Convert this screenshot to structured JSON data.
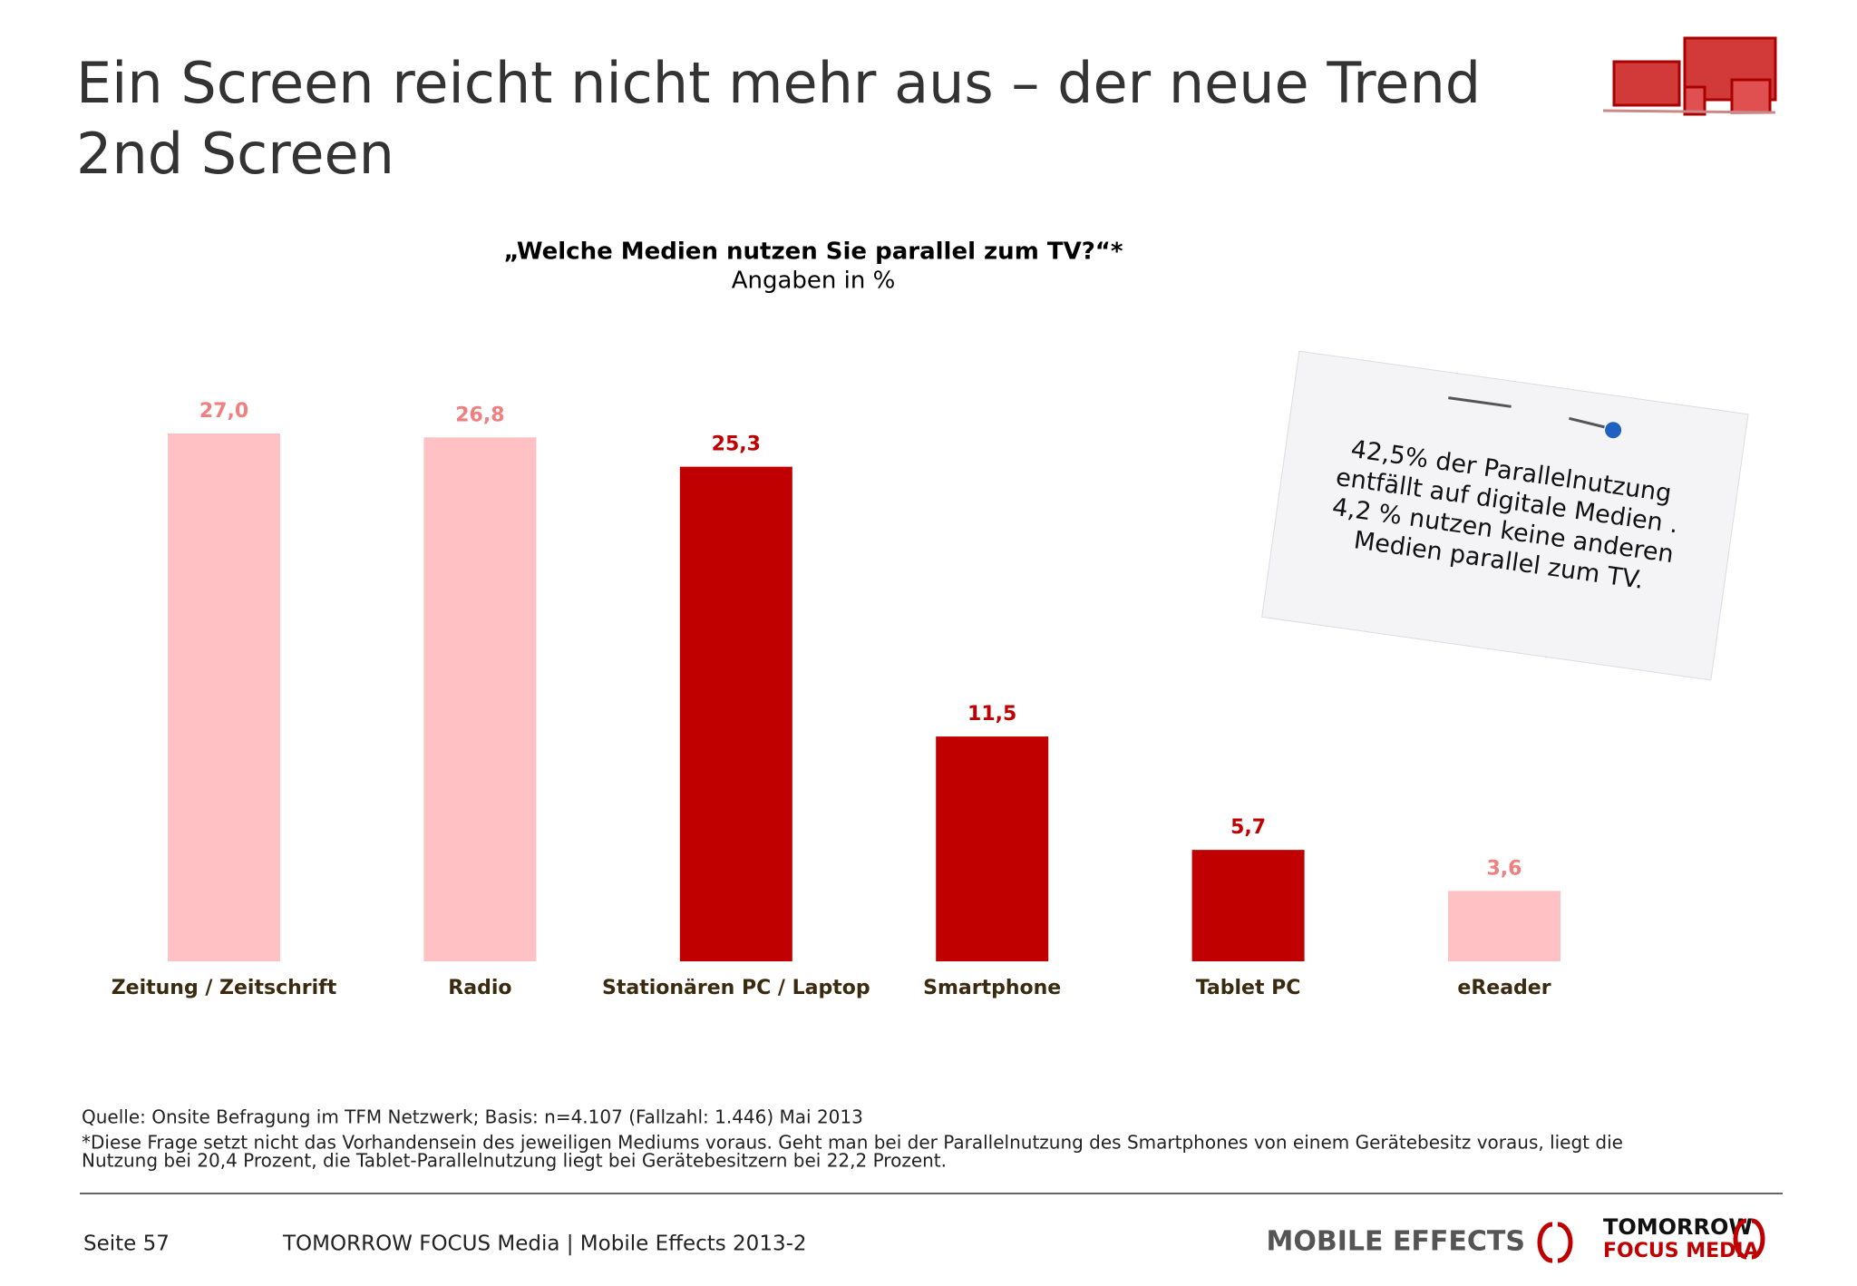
{
  "title": [
    "Ein Screen reicht nicht mehr aus – der neue Trend",
    "2nd Screen"
  ],
  "chart_data": {
    "type": "bar",
    "title": "„Welche Medien nutzen Sie parallel zum TV?“*",
    "subtitle": "Angaben in %",
    "categories": [
      "Zeitung / Zeitschrift",
      "Radio",
      "Stationären PC / Laptop",
      "Smartphone",
      "Tablet PC",
      "eReader"
    ],
    "values": [
      27.0,
      26.8,
      25.3,
      11.5,
      5.7,
      3.6
    ],
    "value_labels": [
      "27,0",
      "26,8",
      "25,3",
      "11,5",
      "5,7",
      "3,6"
    ],
    "colors": [
      "#ffc1c3",
      "#ffc1c3",
      "#c00000",
      "#c00000",
      "#c00000",
      "#ffc1c3"
    ],
    "label_colors": [
      "#f08080",
      "#f08080",
      "#c00000",
      "#c00000",
      "#c00000",
      "#f08080"
    ]
  },
  "note": [
    "42,5% der Parallelnutzung",
    "entfällt auf digitale Medien .",
    "4,2 % nutzen keine anderen",
    "Medien parallel zum TV."
  ],
  "source": "Quelle: Onsite Befragung im TFM Netzwerk; Basis: n=4.107 (Fallzahl: 1.446) Mai 2013",
  "footnote": [
    "*Diese Frage setzt nicht das Vorhandensein des jeweiligen Mediums voraus. Geht man bei der Parallelnutzung des Smartphones von einem Gerätebesitz voraus, liegt die",
    "Nutzung bei 20,4 Prozent, die Tablet-Parallelnutzung liegt bei Gerätebesitzern bei 22,2 Prozent."
  ],
  "footer": {
    "page": "Seite 57",
    "company": "TOMORROW FOCUS Media | Mobile Effects 2013-2",
    "logo1": "MOBILE EFFECTS",
    "logo2": [
      "TOMORROW",
      "FOCUS MEDIA"
    ]
  }
}
